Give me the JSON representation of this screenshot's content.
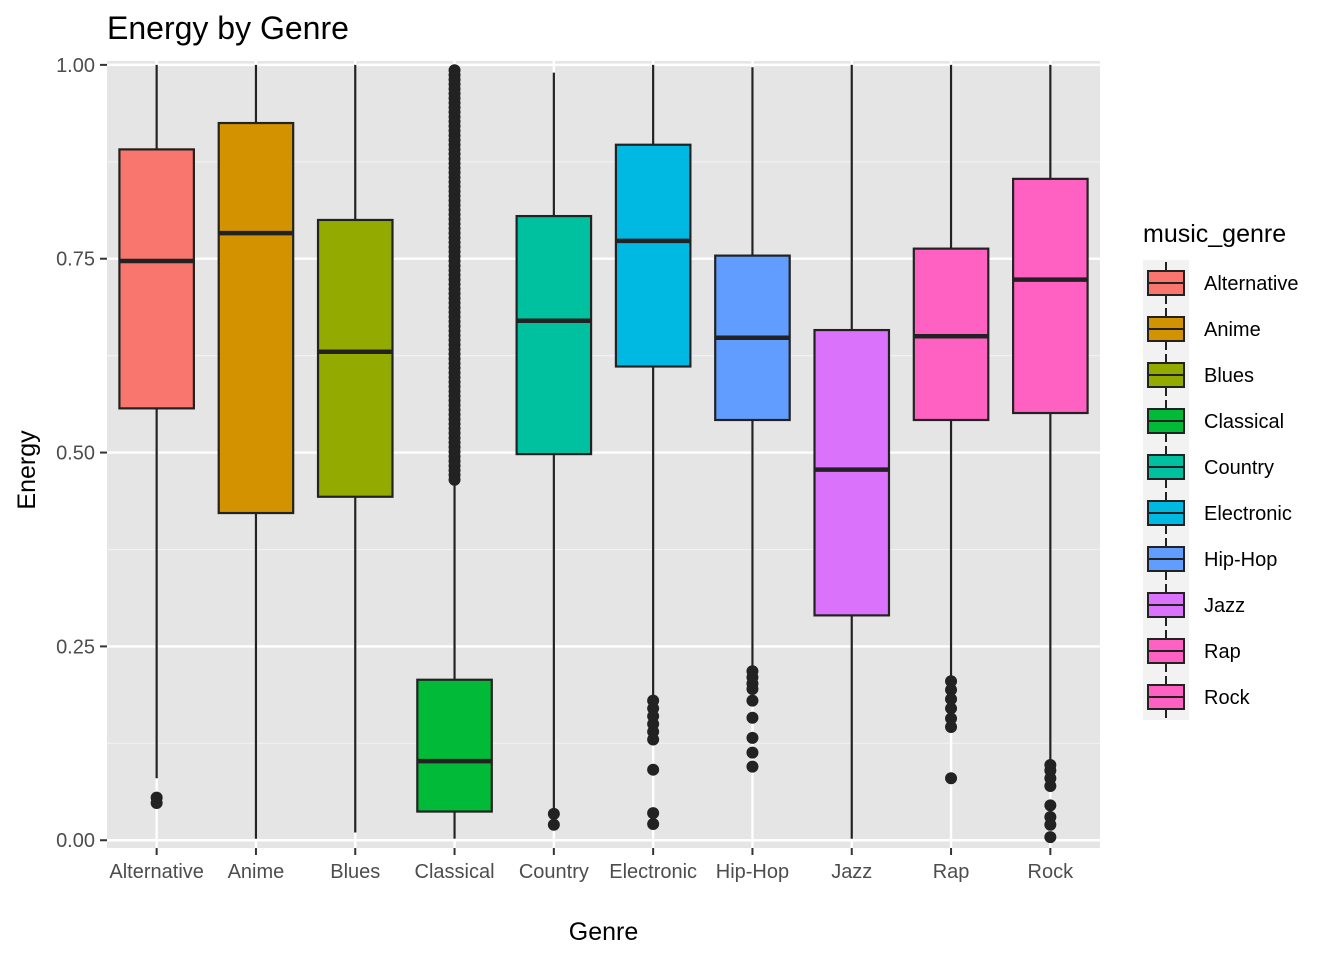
{
  "chart_data": {
    "type": "boxplot",
    "title": "Energy by Genre",
    "xlabel": "Genre",
    "ylabel": "Energy",
    "ylim": [
      -0.01,
      1.005
    ],
    "yticks": [
      0.0,
      0.25,
      0.5,
      0.75,
      1.0
    ],
    "ytick_labels": [
      "0.00",
      "0.25",
      "0.50",
      "0.75",
      "1.00"
    ],
    "grid": true,
    "legend": {
      "title": "music_genre",
      "placement": "right"
    },
    "panel_background": "#E5E5E5",
    "categories": [
      {
        "name": "Alternative",
        "color": "#F8766D",
        "min": 0.08,
        "q1": 0.557,
        "median": 0.747,
        "q3": 0.891,
        "max": 1.0,
        "outliers": [
          0.048,
          0.055
        ]
      },
      {
        "name": "Anime",
        "color": "#D39200",
        "min": 0.002,
        "q1": 0.422,
        "median": 0.783,
        "q3": 0.925,
        "max": 1.0,
        "outliers": []
      },
      {
        "name": "Blues",
        "color": "#93AA00",
        "min": 0.01,
        "q1": 0.443,
        "median": 0.63,
        "q3": 0.8,
        "max": 1.0,
        "outliers": []
      },
      {
        "name": "Classical",
        "color": "#00BA38",
        "min": 0.002,
        "q1": 0.037,
        "median": 0.102,
        "q3": 0.207,
        "max": 0.46,
        "outliers": [
          0.465,
          0.475,
          0.49,
          0.51,
          0.53,
          0.55,
          0.57,
          0.6,
          0.62,
          0.65,
          0.68,
          0.7,
          0.73,
          0.76,
          0.79,
          0.82,
          0.85,
          0.88,
          0.91,
          0.94,
          0.97,
          0.995
        ]
      },
      {
        "name": "Country",
        "color": "#00C19F",
        "min": 0.04,
        "q1": 0.498,
        "median": 0.67,
        "q3": 0.805,
        "max": 0.99,
        "outliers": [
          0.02,
          0.034
        ]
      },
      {
        "name": "Electronic",
        "color": "#00B9E3",
        "min": 0.185,
        "q1": 0.611,
        "median": 0.773,
        "q3": 0.897,
        "max": 1.0,
        "outliers": [
          0.021,
          0.035,
          0.091,
          0.13,
          0.14,
          0.15,
          0.16,
          0.17,
          0.18
        ]
      },
      {
        "name": "Hip-Hop",
        "color": "#619CFF",
        "min": 0.225,
        "q1": 0.542,
        "median": 0.648,
        "q3": 0.754,
        "max": 0.997,
        "outliers": [
          0.095,
          0.113,
          0.132,
          0.158,
          0.18,
          0.195,
          0.202,
          0.21,
          0.218
        ]
      },
      {
        "name": "Jazz",
        "color": "#DB72FB",
        "min": 0.002,
        "q1": 0.29,
        "median": 0.478,
        "q3": 0.658,
        "max": 1.0,
        "outliers": []
      },
      {
        "name": "Rap",
        "color": "#FF61C3",
        "min": 0.21,
        "q1": 0.542,
        "median": 0.65,
        "q3": 0.763,
        "max": 1.0,
        "outliers": [
          0.08,
          0.146,
          0.157,
          0.17,
          0.182,
          0.194,
          0.205
        ]
      },
      {
        "name": "Rock",
        "color": "#FF61C3",
        "min": 0.1,
        "q1": 0.551,
        "median": 0.723,
        "q3": 0.853,
        "max": 1.0,
        "outliers": [
          0.004,
          0.02,
          0.03,
          0.045,
          0.07,
          0.08,
          0.09,
          0.097
        ]
      }
    ]
  },
  "legend_colors": [
    "#F8766D",
    "#D39200",
    "#93AA00",
    "#00BA38",
    "#00C19F",
    "#00B9E3",
    "#619CFF",
    "#DB72FB",
    "#FF61C3",
    "#FF61C3"
  ]
}
